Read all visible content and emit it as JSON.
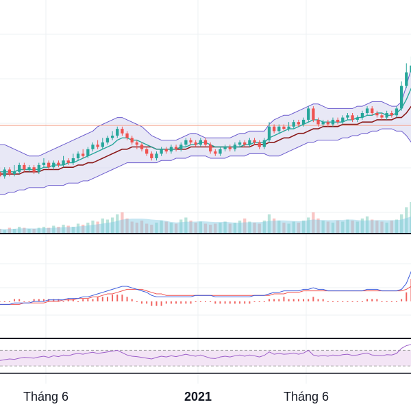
{
  "chart_data": {
    "type": "candlestick-with-indicators",
    "x_ticks": [
      "Tháng 6",
      "2021",
      "Tháng 6"
    ],
    "colors": {
      "up": "#26a69a",
      "down": "#ef5350",
      "bollinger_band": "#6a5acd",
      "bollinger_fill": "#d8d8f0",
      "ma_fast": "#26a69a",
      "ma_slow": "#8b1a1a",
      "price_line": "#f4a08a",
      "macd": "#3b5bdb",
      "signal": "#ef5350",
      "rsi": "#9c5ec9",
      "rsi_band": "#f3e5f5",
      "volume_up": "#a8dcd1",
      "volume_down": "#f7b7b5",
      "volume_ma": "#7ec8e3"
    },
    "price_axis": {
      "min": 0,
      "max": 100
    },
    "reference_level": 44.5,
    "candles": [
      [
        24,
        22,
        26,
        21
      ],
      [
        22,
        25,
        26,
        21
      ],
      [
        25,
        23,
        26,
        22
      ],
      [
        23,
        24,
        27,
        22
      ],
      [
        24,
        27,
        28,
        23
      ],
      [
        27,
        25,
        28,
        24
      ],
      [
        25,
        26,
        27,
        24
      ],
      [
        26,
        24,
        27,
        23
      ],
      [
        24,
        27,
        28,
        23
      ],
      [
        27,
        28,
        30,
        26
      ],
      [
        28,
        26,
        29,
        25
      ],
      [
        26,
        28,
        29,
        25
      ],
      [
        28,
        27,
        29,
        26
      ],
      [
        27,
        29,
        31,
        26
      ],
      [
        29,
        28,
        30,
        27
      ],
      [
        28,
        30,
        32,
        27
      ],
      [
        30,
        32,
        33,
        29
      ],
      [
        32,
        31,
        34,
        30
      ],
      [
        31,
        34,
        35,
        30
      ],
      [
        34,
        36,
        37,
        33
      ],
      [
        36,
        35,
        38,
        34
      ],
      [
        35,
        37,
        39,
        34
      ],
      [
        37,
        39,
        40,
        36
      ],
      [
        39,
        40,
        42,
        38
      ],
      [
        40,
        43,
        44,
        39
      ],
      [
        43,
        41,
        44,
        40
      ],
      [
        41,
        39,
        42,
        38
      ],
      [
        39,
        37,
        40,
        36
      ],
      [
        37,
        36,
        38,
        34
      ],
      [
        36,
        34,
        37,
        33
      ],
      [
        34,
        32,
        35,
        31
      ],
      [
        32,
        30,
        33,
        29
      ],
      [
        30,
        32,
        33,
        29
      ],
      [
        32,
        34,
        35,
        31
      ],
      [
        34,
        33,
        35,
        32
      ],
      [
        33,
        35,
        36,
        32
      ],
      [
        35,
        34,
        36,
        33
      ],
      [
        34,
        36,
        37,
        33
      ],
      [
        36,
        38,
        39,
        35
      ],
      [
        38,
        37,
        39,
        36
      ],
      [
        37,
        36,
        38,
        35
      ],
      [
        36,
        38,
        39,
        35
      ],
      [
        38,
        36,
        39,
        35
      ],
      [
        36,
        33,
        37,
        32
      ],
      [
        33,
        32,
        34,
        31
      ],
      [
        32,
        34,
        35,
        31
      ],
      [
        34,
        35,
        36,
        33
      ],
      [
        35,
        34,
        36,
        33
      ],
      [
        34,
        36,
        37,
        33
      ],
      [
        36,
        37,
        38,
        35
      ],
      [
        37,
        36,
        38,
        35
      ],
      [
        36,
        38,
        39,
        35
      ],
      [
        38,
        37,
        39,
        36
      ],
      [
        37,
        35,
        38,
        34
      ],
      [
        35,
        38,
        39,
        34
      ],
      [
        38,
        44,
        46,
        37
      ],
      [
        44,
        42,
        45,
        41
      ],
      [
        42,
        44,
        45,
        41
      ],
      [
        44,
        43,
        45,
        42
      ],
      [
        43,
        44,
        46,
        42
      ],
      [
        44,
        46,
        47,
        43
      ],
      [
        46,
        45,
        47,
        44
      ],
      [
        45,
        47,
        48,
        44
      ],
      [
        47,
        52,
        53,
        46
      ],
      [
        52,
        47,
        53,
        46
      ],
      [
        47,
        45,
        48,
        44
      ],
      [
        45,
        46,
        47,
        44
      ],
      [
        46,
        45,
        47,
        44
      ],
      [
        45,
        47,
        48,
        44
      ],
      [
        47,
        46,
        48,
        45
      ],
      [
        46,
        48,
        49,
        45
      ],
      [
        48,
        49,
        50,
        47
      ],
      [
        49,
        47,
        50,
        46
      ],
      [
        47,
        48,
        49,
        46
      ],
      [
        48,
        50,
        51,
        47
      ],
      [
        50,
        52,
        53,
        49
      ],
      [
        52,
        50,
        53,
        49
      ],
      [
        50,
        49,
        51,
        48
      ],
      [
        49,
        48,
        50,
        47
      ],
      [
        48,
        50,
        51,
        47
      ],
      [
        50,
        49,
        51,
        48
      ],
      [
        49,
        52,
        53,
        48
      ],
      [
        52,
        62,
        64,
        51
      ],
      [
        62,
        68,
        72,
        61
      ],
      [
        68,
        71,
        75,
        66
      ]
    ],
    "bollinger_upper": [
      36,
      36,
      35,
      34,
      33,
      32,
      31,
      31,
      31,
      32,
      33,
      34,
      35,
      36,
      37,
      38,
      39,
      40,
      41,
      42,
      44,
      45,
      46,
      47,
      48,
      48,
      47,
      46,
      45,
      44,
      42,
      40,
      39,
      38,
      38,
      38,
      38,
      39,
      40,
      41,
      41,
      40,
      39,
      39,
      39,
      39,
      39,
      39,
      40,
      41,
      41,
      42,
      42,
      42,
      42,
      45,
      47,
      48,
      49,
      49,
      50,
      51,
      52,
      53,
      54,
      54,
      53,
      52,
      52,
      52,
      52,
      52,
      52,
      53,
      53,
      54,
      55,
      55,
      55,
      54,
      53,
      53,
      55,
      62,
      70
    ],
    "bollinger_lower": [
      14,
      14,
      15,
      15,
      16,
      16,
      17,
      17,
      17,
      17,
      18,
      18,
      18,
      18,
      19,
      19,
      19,
      20,
      20,
      21,
      22,
      23,
      24,
      25,
      26,
      27,
      28,
      28,
      28,
      28,
      28,
      28,
      28,
      29,
      29,
      29,
      30,
      30,
      30,
      31,
      31,
      31,
      31,
      30,
      30,
      30,
      30,
      31,
      31,
      31,
      31,
      32,
      32,
      32,
      32,
      31,
      31,
      31,
      32,
      33,
      34,
      35,
      36,
      37,
      37,
      38,
      38,
      38,
      38,
      38,
      39,
      39,
      40,
      40,
      41,
      41,
      42,
      42,
      43,
      43,
      43,
      42,
      42,
      40,
      37
    ],
    "ma_fast": [
      24,
      24,
      24,
      24,
      25,
      25,
      25,
      25,
      25,
      26,
      26,
      27,
      27,
      27,
      28,
      28,
      29,
      30,
      31,
      32,
      33,
      34,
      35,
      36,
      38,
      39,
      39,
      38,
      38,
      37,
      36,
      35,
      34,
      34,
      34,
      34,
      34,
      35,
      35,
      36,
      36,
      37,
      37,
      36,
      35,
      35,
      35,
      35,
      35,
      35,
      36,
      36,
      37,
      37,
      37,
      39,
      40,
      41,
      42,
      43,
      43,
      44,
      45,
      46,
      47,
      47,
      46,
      46,
      46,
      46,
      46,
      47,
      47,
      48,
      48,
      49,
      49,
      50,
      50,
      49,
      49,
      50,
      52,
      56,
      61
    ],
    "ma_slow": [
      23,
      23,
      23,
      23,
      23,
      24,
      24,
      24,
      24,
      25,
      25,
      25,
      25,
      26,
      26,
      26,
      27,
      27,
      28,
      28,
      29,
      30,
      31,
      32,
      33,
      34,
      34,
      35,
      35,
      35,
      35,
      35,
      34,
      34,
      34,
      34,
      34,
      34,
      34,
      35,
      35,
      35,
      35,
      35,
      35,
      35,
      35,
      35,
      35,
      35,
      35,
      35,
      36,
      36,
      36,
      37,
      37,
      38,
      39,
      39,
      40,
      41,
      41,
      42,
      43,
      43,
      44,
      44,
      44,
      44,
      45,
      45,
      45,
      45,
      46,
      46,
      46,
      47,
      47,
      47,
      47,
      48,
      48,
      50,
      53
    ],
    "volume": [
      4,
      3,
      5,
      4,
      6,
      5,
      4,
      4,
      5,
      6,
      5,
      7,
      6,
      8,
      7,
      6,
      9,
      8,
      10,
      12,
      11,
      14,
      13,
      15,
      18,
      20,
      14,
      11,
      10,
      12,
      9,
      8,
      10,
      12,
      11,
      10,
      9,
      13,
      15,
      12,
      10,
      11,
      9,
      8,
      9,
      10,
      11,
      9,
      10,
      12,
      14,
      11,
      10,
      9,
      12,
      18,
      14,
      12,
      10,
      9,
      11,
      10,
      12,
      15,
      20,
      14,
      12,
      11,
      10,
      12,
      11,
      13,
      12,
      11,
      14,
      16,
      13,
      12,
      11,
      10,
      12,
      13,
      18,
      25,
      30
    ],
    "macd": [
      -2,
      -2,
      -2,
      -1,
      -1,
      -1,
      -1,
      0,
      0,
      0,
      1,
      1,
      1,
      1,
      2,
      2,
      2,
      3,
      3,
      4,
      5,
      6,
      7,
      8,
      9,
      10,
      10,
      9,
      8,
      7,
      6,
      4,
      3,
      3,
      3,
      3,
      3,
      3,
      3,
      3,
      4,
      4,
      4,
      4,
      3,
      3,
      3,
      3,
      3,
      3,
      3,
      3,
      4,
      4,
      4,
      5,
      6,
      6,
      7,
      7,
      7,
      7,
      8,
      8,
      9,
      8,
      8,
      7,
      7,
      7,
      7,
      7,
      7,
      7,
      7,
      8,
      8,
      8,
      7,
      7,
      7,
      7,
      8,
      12,
      20
    ],
    "signal": [
      -2,
      -2,
      -2,
      -2,
      -2,
      -1,
      -1,
      -1,
      -1,
      -1,
      0,
      0,
      0,
      1,
      1,
      1,
      2,
      2,
      2,
      3,
      3,
      4,
      5,
      5,
      6,
      7,
      8,
      8,
      8,
      8,
      7,
      6,
      5,
      5,
      4,
      4,
      4,
      4,
      4,
      4,
      4,
      4,
      4,
      4,
      4,
      4,
      4,
      4,
      4,
      4,
      4,
      4,
      4,
      4,
      4,
      4,
      5,
      5,
      5,
      6,
      6,
      6,
      7,
      7,
      7,
      7,
      7,
      7,
      7,
      7,
      7,
      7,
      7,
      7,
      7,
      7,
      7,
      7,
      7,
      7,
      7,
      7,
      7,
      8,
      10
    ],
    "rsi": [
      44,
      46,
      48,
      47,
      50,
      52,
      51,
      50,
      53,
      55,
      52,
      56,
      54,
      58,
      56,
      60,
      62,
      60,
      63,
      65,
      62,
      64,
      66,
      68,
      70,
      64,
      58,
      55,
      54,
      52,
      50,
      48,
      52,
      55,
      53,
      56,
      54,
      57,
      60,
      57,
      55,
      58,
      54,
      50,
      49,
      53,
      55,
      53,
      56,
      58,
      55,
      58,
      56,
      53,
      57,
      66,
      60,
      62,
      60,
      61,
      63,
      60,
      63,
      70,
      58,
      55,
      57,
      55,
      58,
      56,
      59,
      60,
      57,
      58,
      61,
      63,
      58,
      57,
      56,
      59,
      58,
      62,
      75,
      82,
      85
    ],
    "rsi_upper": 70,
    "rsi_lower": 30
  }
}
